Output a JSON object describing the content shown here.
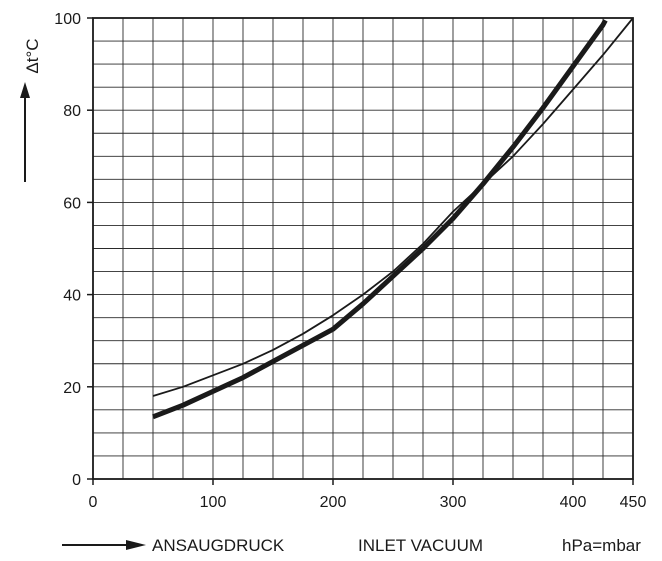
{
  "chart_data": {
    "type": "line",
    "title": "",
    "ylabel": "Δt°C",
    "xlabel_de": "ANSAUGDRUCK",
    "xlabel_en": "INLET VACUUM",
    "xunit": "hPa=mbar",
    "xlim": [
      0,
      450
    ],
    "ylim": [
      0,
      100
    ],
    "x_ticks": [
      "0",
      "100",
      "200",
      "300",
      "400",
      "450"
    ],
    "y_ticks": [
      "0",
      "20",
      "40",
      "60",
      "80",
      "100"
    ],
    "grid": true,
    "series": [
      {
        "style": "thick",
        "color": "#1a1a1a",
        "x": [
          50,
          75,
          100,
          125,
          150,
          175,
          200,
          225,
          250,
          275,
          300,
          325,
          350,
          375,
          400,
          425,
          427
        ],
        "y": [
          13.5,
          16,
          19,
          22,
          25.5,
          29,
          32.5,
          38,
          44,
          50,
          56.5,
          64,
          72,
          80.5,
          89.5,
          98.5,
          99.5
        ]
      },
      {
        "style": "thin",
        "color": "#1a1a1a",
        "x": [
          50,
          75,
          100,
          125,
          150,
          175,
          200,
          225,
          250,
          275,
          300,
          325,
          350,
          375,
          400,
          425,
          450
        ],
        "y": [
          18,
          20,
          22.5,
          25,
          28,
          31.5,
          35.5,
          40,
          45,
          51,
          58,
          64,
          70,
          77,
          84.5,
          92,
          100
        ]
      }
    ]
  }
}
